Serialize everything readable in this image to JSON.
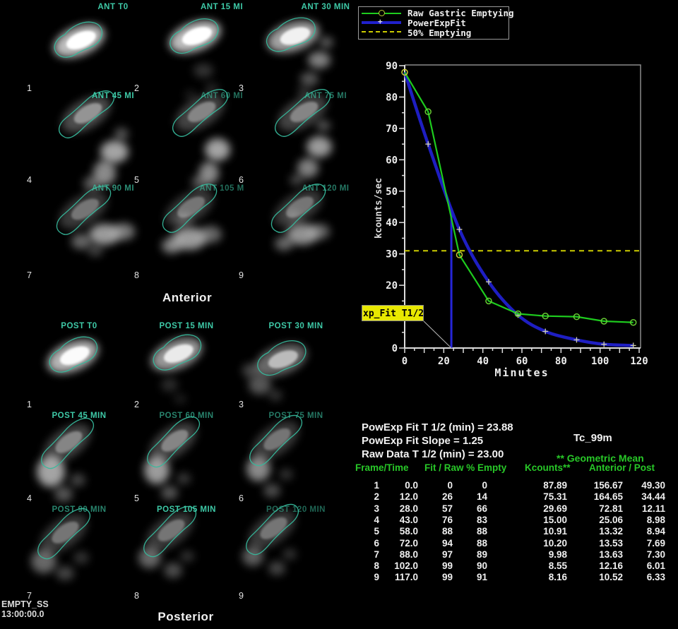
{
  "app": {
    "study_id": "EMPTY_SS",
    "study_time": "13:00:00.0"
  },
  "anterior": {
    "section_label": "Anterior",
    "frames": [
      {
        "number": "1",
        "label": "ANT T0"
      },
      {
        "number": "2",
        "label": "ANT 15 MI"
      },
      {
        "number": "3",
        "label": "ANT 30 MIN"
      },
      {
        "number": "4",
        "label": "ANT 45 MI"
      },
      {
        "number": "5",
        "label": "ANT 60 MI"
      },
      {
        "number": "6",
        "label": "ANT 75 MI"
      },
      {
        "number": "7",
        "label": "ANT 90 MI"
      },
      {
        "number": "8",
        "label": "ANT 105 M"
      },
      {
        "number": "9",
        "label": "ANT 120 MI"
      }
    ]
  },
  "posterior": {
    "section_label": "Posterior",
    "frames": [
      {
        "number": "1",
        "label": "POST T0"
      },
      {
        "number": "2",
        "label": "POST 15 MIN"
      },
      {
        "number": "3",
        "label": "POST 30 MIN"
      },
      {
        "number": "4",
        "label": "POST 45 MIN"
      },
      {
        "number": "5",
        "label": "POST 60 MIN"
      },
      {
        "number": "6",
        "label": "POST 75 MIN"
      },
      {
        "number": "7",
        "label": "POST 90 MIN"
      },
      {
        "number": "8",
        "label": "POST 105 MIN"
      },
      {
        "number": "9",
        "label": "POST 120 MIN"
      }
    ]
  },
  "legend": {
    "items": [
      {
        "label": "Raw Gastric Emptying",
        "color": "#1ecc1e",
        "marker": "circle"
      },
      {
        "label": "PowerExpFit",
        "color": "#2020cc",
        "marker": "plus"
      },
      {
        "label": "50% Emptying",
        "color": "#cccc00",
        "style": "dashed"
      }
    ]
  },
  "chart_data": {
    "type": "line",
    "xlabel": "Minutes",
    "ylabel": "kcounts/sec",
    "xlim": [
      0,
      120
    ],
    "ylim": [
      0,
      90
    ],
    "xticks": [
      0,
      20,
      40,
      60,
      80,
      100,
      120
    ],
    "yticks": [
      0,
      10,
      20,
      30,
      40,
      50,
      60,
      70,
      80,
      90
    ],
    "grid": false,
    "legend_position": "top-left",
    "series": [
      {
        "name": "Raw Gastric Emptying",
        "color": "#1ecc1e",
        "x": [
          0,
          12,
          28,
          43,
          58,
          72,
          88,
          102,
          117
        ],
        "y": [
          87.89,
          75.31,
          29.69,
          15.0,
          10.91,
          10.2,
          9.98,
          8.55,
          8.16
        ]
      },
      {
        "name": "PowerExpFit",
        "color": "#2020cc",
        "x": [
          0,
          12,
          28,
          43,
          58,
          72,
          88,
          102,
          117
        ],
        "y": [
          87.89,
          65.0,
          37.8,
          21.1,
          10.5,
          5.3,
          2.6,
          1.2,
          0.8
        ]
      }
    ],
    "reference_lines": {
      "half_emptying_y": 31,
      "t_half_x": 23.88,
      "t_half_line_top": 44
    },
    "annotation": {
      "label": "xp_Fit T1/2"
    }
  },
  "results": {
    "line1": "PowExp Fit T 1/2 (min) = 23.88",
    "line2": "PowExp Fit Slope = 1.25",
    "line3": "Raw Data T 1/2 (min) = 23.00",
    "isotope": "Tc_99m",
    "geometric_mean_note": "** Geometric Mean"
  },
  "table": {
    "headers": [
      "Frame/Time",
      "Fit / Raw % Empty",
      "Kcounts**",
      "Anterior / Post"
    ],
    "rows": [
      [
        "1",
        "0.0",
        "0",
        "0",
        "87.89",
        "156.67",
        "49.30"
      ],
      [
        "2",
        "12.0",
        "26",
        "14",
        "75.31",
        "164.65",
        "34.44"
      ],
      [
        "3",
        "28.0",
        "57",
        "66",
        "29.69",
        "72.81",
        "12.11"
      ],
      [
        "4",
        "43.0",
        "76",
        "83",
        "15.00",
        "25.06",
        "8.98"
      ],
      [
        "5",
        "58.0",
        "88",
        "88",
        "10.91",
        "13.32",
        "8.94"
      ],
      [
        "6",
        "72.0",
        "94",
        "88",
        "10.20",
        "13.53",
        "7.69"
      ],
      [
        "7",
        "88.0",
        "97",
        "89",
        "9.98",
        "13.63",
        "7.30"
      ],
      [
        "8",
        "102.0",
        "99",
        "90",
        "8.55",
        "12.16",
        "6.01"
      ],
      [
        "9",
        "117.0",
        "99",
        "91",
        "8.16",
        "10.52",
        "6.33"
      ]
    ]
  }
}
